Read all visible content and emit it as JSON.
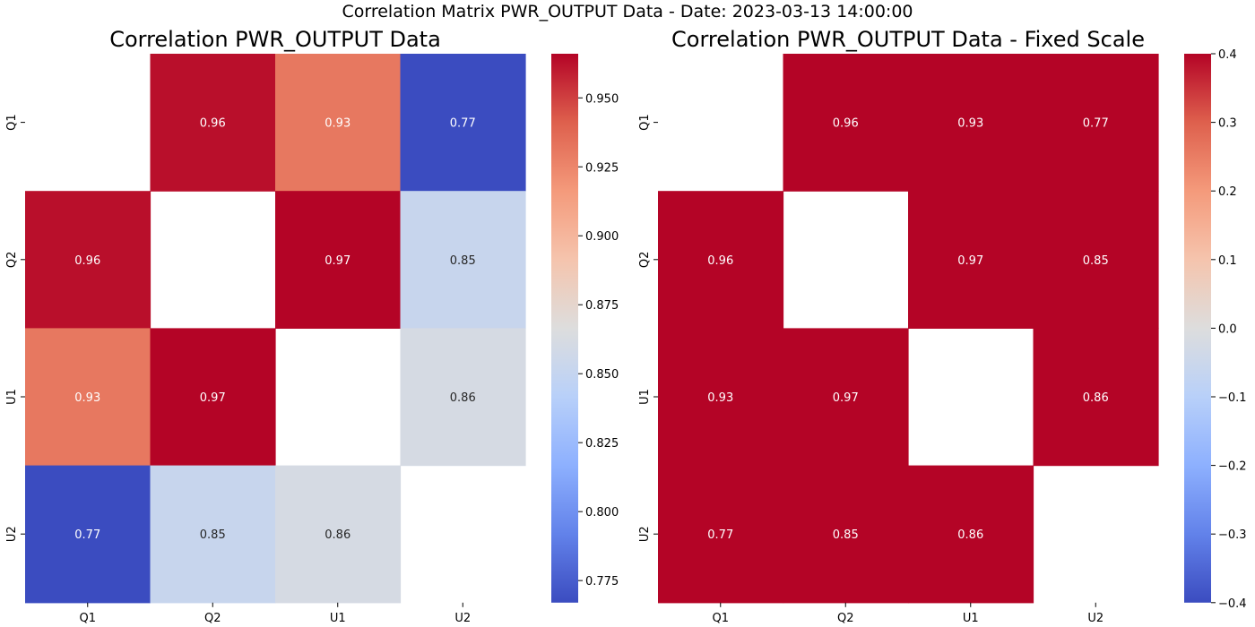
{
  "figure": {
    "suptitle": "Correlation Matrix PWR_OUTPUT Data - Date: 2023-03-13 14:00:00",
    "colormap": "coolwarm",
    "text_colors": {
      "light": "#ffffff",
      "dark": "#262626"
    }
  },
  "chart_data": [
    {
      "type": "heatmap",
      "title": "Correlation PWR_OUTPUT Data",
      "xlabel": "",
      "ylabel": "",
      "x_categories": [
        "Q1",
        "Q2",
        "U1",
        "U2"
      ],
      "y_categories": [
        "Q1",
        "Q2",
        "U1",
        "U2"
      ],
      "values": [
        [
          null,
          0.963,
          0.931,
          0.767
        ],
        [
          0.963,
          null,
          0.966,
          0.852
        ],
        [
          0.931,
          0.966,
          null,
          0.861
        ],
        [
          0.767,
          0.852,
          0.861,
          null
        ]
      ],
      "annotations": [
        [
          "",
          "0.96",
          "0.93",
          "0.77"
        ],
        [
          "0.96",
          "",
          "0.97",
          "0.85"
        ],
        [
          "0.93",
          "0.97",
          "",
          "0.86"
        ],
        [
          "0.77",
          "0.85",
          "0.86",
          ""
        ]
      ],
      "vmin": 0.767,
      "vmax": 0.966,
      "colorbar_ticks": [
        0.775,
        0.8,
        0.825,
        0.85,
        0.875,
        0.9,
        0.925,
        0.95
      ],
      "colorbar_tick_labels": [
        "0.775",
        "0.800",
        "0.825",
        "0.850",
        "0.875",
        "0.900",
        "0.925",
        "0.950"
      ]
    },
    {
      "type": "heatmap",
      "title": "Correlation PWR_OUTPUT Data - Fixed Scale",
      "xlabel": "",
      "ylabel": "",
      "x_categories": [
        "Q1",
        "Q2",
        "U1",
        "U2"
      ],
      "y_categories": [
        "Q1",
        "Q2",
        "U1",
        "U2"
      ],
      "values": [
        [
          null,
          0.963,
          0.931,
          0.767
        ],
        [
          0.963,
          null,
          0.966,
          0.852
        ],
        [
          0.931,
          0.966,
          null,
          0.861
        ],
        [
          0.767,
          0.852,
          0.861,
          null
        ]
      ],
      "annotations": [
        [
          "",
          "0.96",
          "0.93",
          "0.77"
        ],
        [
          "0.96",
          "",
          "0.97",
          "0.85"
        ],
        [
          "0.93",
          "0.97",
          "",
          "0.86"
        ],
        [
          "0.77",
          "0.85",
          "0.86",
          ""
        ]
      ],
      "vmin": -0.4,
      "vmax": 0.4,
      "colorbar_ticks": [
        -0.4,
        -0.3,
        -0.2,
        -0.1,
        0.0,
        0.1,
        0.2,
        0.3,
        0.4
      ],
      "colorbar_tick_labels": [
        "−0.4",
        "−0.3",
        "−0.2",
        "−0.1",
        "0.0",
        "0.1",
        "0.2",
        "0.3",
        "0.4"
      ]
    }
  ]
}
